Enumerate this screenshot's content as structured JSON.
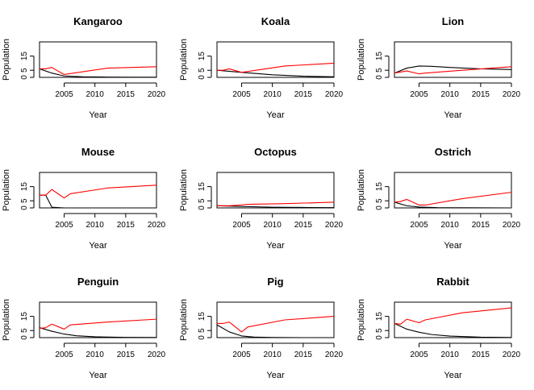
{
  "chart_data": [
    {
      "type": "line",
      "title": "Kangaroo",
      "xlabel": "Year",
      "ylabel": "Population",
      "xlim": [
        2001,
        2020
      ],
      "ylim": [
        0,
        25
      ],
      "xticks": [
        "2005",
        "2010",
        "2015",
        "2020"
      ],
      "yticks": [
        "0",
        "5",
        "15"
      ],
      "series_colors": [
        "#000000",
        "#ff0000"
      ],
      "series": [
        {
          "x": [
            2001,
            2003,
            2005,
            2008,
            2012,
            2016,
            2020
          ],
          "values": [
            6,
            3,
            1,
            0.4,
            0.2,
            0.1,
            0.1
          ]
        },
        {
          "x": [
            2001,
            2002,
            2003,
            2005,
            2012,
            2020
          ],
          "values": [
            6,
            6,
            7,
            2,
            6.5,
            7.5
          ]
        }
      ]
    },
    {
      "type": "line",
      "title": "Koala",
      "xlabel": "Year",
      "ylabel": "Population",
      "xlim": [
        2001,
        2020
      ],
      "ylim": [
        0,
        25
      ],
      "xticks": [
        "2005",
        "2010",
        "2015",
        "2020"
      ],
      "yticks": [
        "0",
        "5",
        "15"
      ],
      "series_colors": [
        "#000000",
        "#ff0000"
      ],
      "series": [
        {
          "x": [
            2001,
            2005,
            2010,
            2015,
            2020
          ],
          "values": [
            5,
            3.5,
            1.8,
            0.8,
            0.4
          ]
        },
        {
          "x": [
            2001,
            2002,
            2003,
            2005,
            2012,
            2020
          ],
          "values": [
            5,
            5,
            6,
            3.5,
            8,
            10
          ]
        }
      ]
    },
    {
      "type": "line",
      "title": "Lion",
      "xlabel": "Year",
      "ylabel": "Population",
      "xlim": [
        2001,
        2020
      ],
      "ylim": [
        0,
        25
      ],
      "xticks": [
        "2005",
        "2010",
        "2015",
        "2020"
      ],
      "yticks": [
        "0",
        "5",
        "15"
      ],
      "series_colors": [
        "#000000",
        "#ff0000"
      ],
      "series": [
        {
          "x": [
            2001,
            2003,
            2005,
            2007,
            2010,
            2015,
            2020
          ],
          "values": [
            3,
            6.5,
            8,
            7.8,
            7,
            6,
            5.5
          ]
        },
        {
          "x": [
            2001,
            2003,
            2005,
            2006,
            2012,
            2020
          ],
          "values": [
            3,
            4.5,
            2.5,
            3,
            5,
            7.5
          ]
        }
      ]
    },
    {
      "type": "line",
      "title": "Mouse",
      "xlabel": "Year",
      "ylabel": "Population",
      "xlim": [
        2001,
        2020
      ],
      "ylim": [
        0,
        25
      ],
      "xticks": [
        "2005",
        "2010",
        "2015",
        "2020"
      ],
      "yticks": [
        "0",
        "5",
        "15"
      ],
      "series_colors": [
        "#000000",
        "#ff0000"
      ],
      "series": [
        {
          "x": [
            2001,
            2002,
            2003,
            2005,
            2010,
            2020
          ],
          "values": [
            9,
            9,
            0.5,
            0,
            0,
            0
          ]
        },
        {
          "x": [
            2001,
            2002,
            2003,
            2005,
            2006,
            2012,
            2020
          ],
          "values": [
            9,
            9,
            13,
            7,
            10,
            14,
            16
          ]
        }
      ]
    },
    {
      "type": "line",
      "title": "Octopus",
      "xlabel": "Year",
      "ylabel": "Population",
      "xlim": [
        2001,
        2020
      ],
      "ylim": [
        0,
        25
      ],
      "xticks": [
        "2005",
        "2010",
        "2015",
        "2020"
      ],
      "yticks": [
        "0",
        "5",
        "15"
      ],
      "series_colors": [
        "#000000",
        "#ff0000"
      ],
      "series": [
        {
          "x": [
            2001,
            2005,
            2010,
            2015,
            2020
          ],
          "values": [
            1.5,
            1,
            0.5,
            0.3,
            0.2
          ]
        },
        {
          "x": [
            2001,
            2003,
            2005,
            2006,
            2012,
            2020
          ],
          "values": [
            1.5,
            1.5,
            2,
            2.5,
            3,
            4
          ]
        }
      ]
    },
    {
      "type": "line",
      "title": "Ostrich",
      "xlabel": "Year",
      "ylabel": "Population",
      "xlim": [
        2001,
        2020
      ],
      "ylim": [
        0,
        25
      ],
      "xticks": [
        "2005",
        "2010",
        "2015",
        "2020"
      ],
      "yticks": [
        "0",
        "5",
        "15"
      ],
      "series_colors": [
        "#000000",
        "#ff0000"
      ],
      "series": [
        {
          "x": [
            2001,
            2003,
            2005,
            2008,
            2012,
            2020
          ],
          "values": [
            4,
            1.5,
            0.6,
            0.2,
            0.1,
            0
          ]
        },
        {
          "x": [
            2001,
            2002,
            2003,
            2005,
            2006,
            2012,
            2020
          ],
          "values": [
            4,
            4.5,
            6,
            2,
            2,
            6.5,
            11
          ]
        }
      ]
    },
    {
      "type": "line",
      "title": "Penguin",
      "xlabel": "Year",
      "ylabel": "Population",
      "xlim": [
        2001,
        2020
      ],
      "ylim": [
        0,
        25
      ],
      "xticks": [
        "2005",
        "2010",
        "2015",
        "2020"
      ],
      "yticks": [
        "0",
        "5",
        "15"
      ],
      "series_colors": [
        "#000000",
        "#ff0000"
      ],
      "series": [
        {
          "x": [
            2001,
            2003,
            2005,
            2007,
            2010,
            2015,
            2020
          ],
          "values": [
            7,
            4.5,
            2.5,
            1.3,
            0.6,
            0.2,
            0.1
          ]
        },
        {
          "x": [
            2001,
            2002,
            2003,
            2005,
            2006,
            2012,
            2020
          ],
          "values": [
            6.5,
            7,
            9.5,
            6,
            9,
            11,
            13
          ]
        }
      ]
    },
    {
      "type": "line",
      "title": "Pig",
      "xlabel": "Year",
      "ylabel": "Population",
      "xlim": [
        2001,
        2020
      ],
      "ylim": [
        0,
        25
      ],
      "xticks": [
        "2005",
        "2010",
        "2015",
        "2020"
      ],
      "yticks": [
        "0",
        "5",
        "15"
      ],
      "series_colors": [
        "#000000",
        "#ff0000"
      ],
      "series": [
        {
          "x": [
            2001,
            2003,
            2005,
            2007,
            2010,
            2015,
            2020
          ],
          "values": [
            9,
            4,
            1.2,
            0.4,
            0.1,
            0,
            0
          ]
        },
        {
          "x": [
            2001,
            2002,
            2003,
            2005,
            2006,
            2012,
            2020
          ],
          "values": [
            10,
            10,
            11,
            4,
            7.5,
            12.5,
            15
          ]
        }
      ]
    },
    {
      "type": "line",
      "title": "Rabbit",
      "xlabel": "Year",
      "ylabel": "Population",
      "xlim": [
        2001,
        2020
      ],
      "ylim": [
        0,
        25
      ],
      "xticks": [
        "2005",
        "2010",
        "2015",
        "2020"
      ],
      "yticks": [
        "0",
        "5",
        "15"
      ],
      "series_colors": [
        "#000000",
        "#ff0000"
      ],
      "series": [
        {
          "x": [
            2001,
            2003,
            2005,
            2007,
            2010,
            2015,
            2020
          ],
          "values": [
            10,
            6,
            3.8,
            2.2,
            1.1,
            0.3,
            0.1
          ]
        },
        {
          "x": [
            2001,
            2002,
            2003,
            2005,
            2006,
            2012,
            2020
          ],
          "values": [
            10,
            9.5,
            13,
            10.5,
            12.5,
            17.5,
            21
          ]
        }
      ]
    }
  ]
}
